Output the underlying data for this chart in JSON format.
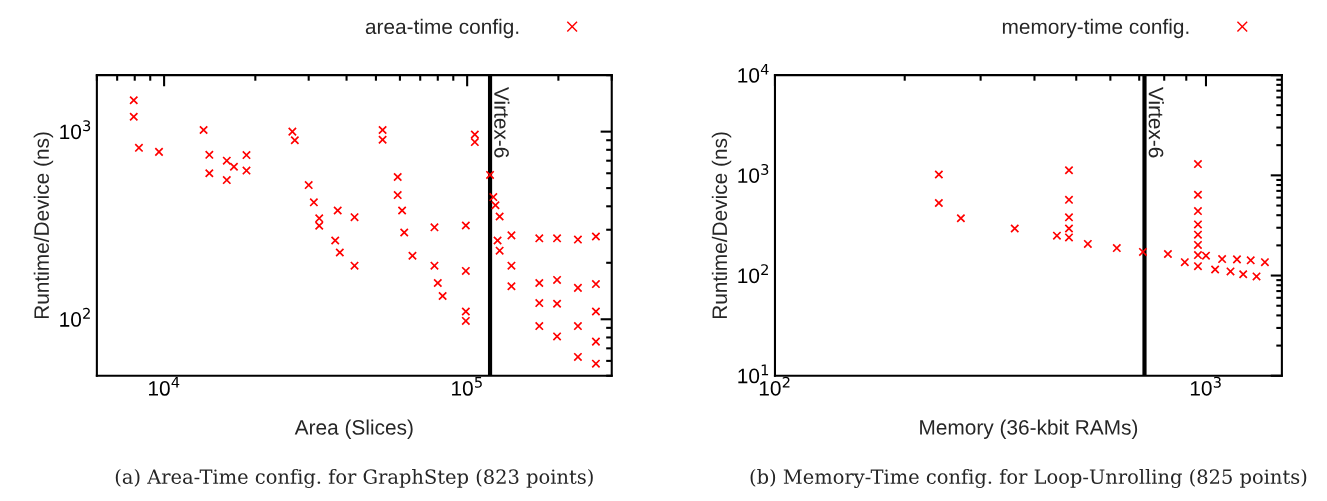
{
  "chart_data": [
    {
      "type": "scatter",
      "xlabel": "Area (Slices)",
      "ylabel": "Runtime/Device (ns)",
      "log": "xy",
      "grid": false,
      "legend": "top right",
      "marker": "cross",
      "xlim": [
        6000,
        300000
      ],
      "ylim": [
        50,
        2000
      ],
      "xticks": [
        {
          "value": 10000,
          "label": "10$^{4}$"
        },
        {
          "value": 100000,
          "label": "10$^{5}$"
        }
      ],
      "yticks": [
        {
          "value": 100,
          "label": "10$^{2}$"
        },
        {
          "value": 1000,
          "label": "10$^{3}$"
        }
      ],
      "ref_lines": [
        {
          "axis": "x",
          "value": 119000,
          "label": "Virtex-6",
          "color": "#000000"
        }
      ],
      "annotations": [
        "(a) Area-Time config. for GraphStep (823 points)"
      ],
      "series": [
        {
          "name": "area-time config.",
          "color": "#ff0000",
          "x": [
            7940,
            7940,
            8260,
            9620,
            13500,
            14100,
            14100,
            16100,
            16100,
            18700,
            18700,
            17000,
            26500,
            27000,
            30000,
            31200,
            32500,
            32500,
            36700,
            38000,
            37400,
            42500,
            42500,
            52600,
            52600,
            59000,
            59000,
            61000,
            62000,
            66000,
            78000,
            78000,
            80000,
            83000,
            99000,
            99000,
            99000,
            99000,
            106000,
            106000,
            119000,
            122000,
            124000,
            128000,
            126000,
            128000,
            140000,
            140000,
            140000,
            173000,
            173000,
            173000,
            173000,
            198000,
            198000,
            198000,
            198000,
            232000,
            232000,
            232000,
            232000,
            266000,
            266000,
            266000,
            266000,
            266000
          ],
          "values": [
            1470,
            1200,
            820,
            780,
            1020,
            752,
            600,
            700,
            552,
            750,
            620,
            650,
            1000,
            900,
            519,
            420,
            345,
            315,
            263,
            227,
            380,
            193,
            350,
            905,
            1020,
            573,
            459,
            380,
            290,
            218,
            309,
            193,
            156,
            133,
            316,
            181,
            110,
            98,
            965,
            880,
            588,
            448,
            405,
            353,
            263,
            232,
            280,
            193,
            150,
            270,
            156,
            122,
            92,
            270,
            162,
            121,
            81,
            266,
            147,
            92,
            63,
            276,
            154,
            110,
            76,
            58
          ]
        }
      ]
    },
    {
      "type": "scatter",
      "xlabel": "Memory (36-kbit RAMs)",
      "ylabel": "Runtime/Device (ns)",
      "log": "xy",
      "grid": false,
      "legend": "top right",
      "marker": "cross",
      "xlim": [
        100,
        1500
      ],
      "ylim": [
        10,
        10000
      ],
      "xticks": [
        {
          "value": 100,
          "label": "10$^{2}$"
        },
        {
          "value": 1000,
          "label": "10$^{3}$"
        }
      ],
      "yticks": [
        {
          "value": 10,
          "label": "10$^{1}$"
        },
        {
          "value": 100,
          "label": "10$^{2}$"
        },
        {
          "value": 1000,
          "label": "10$^{3}$"
        },
        {
          "value": 10000,
          "label": "10$^{4}$"
        }
      ],
      "ref_lines": [
        {
          "axis": "x",
          "value": 720,
          "label": "Virtex-6",
          "color": "#000000"
        }
      ],
      "annotations": [
        "(b) Memory-Time config. for Loop-Unrolling (825 points)"
      ],
      "series": [
        {
          "name": "memory-time config.",
          "color": "#ff0000",
          "x": [
            240,
            240,
            270,
            360,
            451,
            481,
            481,
            481,
            481,
            481,
            532,
            621,
            714,
            816,
            893,
            958,
            958,
            958,
            958,
            958,
            958,
            958,
            958,
            1000,
            1050,
            1090,
            1140,
            1180,
            1220,
            1270,
            1310,
            1370
          ],
          "values": [
            1020,
            530,
            373,
            295,
            250,
            1125,
            570,
            381,
            295,
            240,
            207,
            188,
            172,
            164,
            136,
            1295,
            640,
            440,
            324,
            256,
            202,
            160,
            124,
            158,
            115,
            146,
            110,
            145,
            103,
            142,
            98,
            136
          ]
        }
      ]
    }
  ]
}
